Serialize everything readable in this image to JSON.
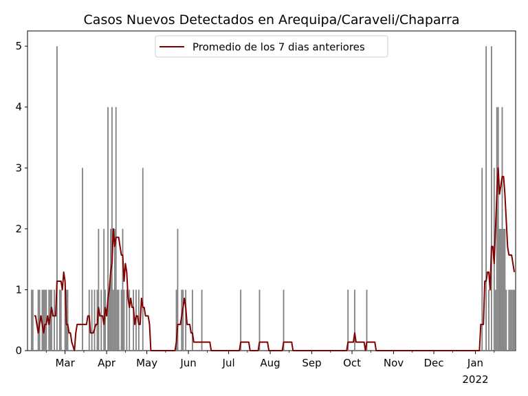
{
  "chart_data": {
    "type": "bar",
    "title": "Casos Nuevos Detectados en Arequipa/Caraveli/Chaparra",
    "xlabel": "",
    "ylabel": "",
    "x_range": [
      "2021-02-01",
      "2022-01-31"
    ],
    "ylim": [
      0,
      5.25
    ],
    "yticks": [
      0,
      1,
      2,
      3,
      4,
      5
    ],
    "xticks": [
      {
        "date": "2021-03-01",
        "label": "Mar"
      },
      {
        "date": "2021-04-01",
        "label": "Apr"
      },
      {
        "date": "2021-05-01",
        "label": "May"
      },
      {
        "date": "2021-06-01",
        "label": "Jun"
      },
      {
        "date": "2021-07-01",
        "label": "Jul"
      },
      {
        "date": "2021-08-01",
        "label": "Aug"
      },
      {
        "date": "2021-09-01",
        "label": "Sep"
      },
      {
        "date": "2021-10-01",
        "label": "Oct"
      },
      {
        "date": "2021-11-01",
        "label": "Nov"
      },
      {
        "date": "2021-12-01",
        "label": "Dec"
      },
      {
        "date": "2022-01-01",
        "label": "Jan",
        "sublabel": "2022"
      }
    ],
    "grid": false,
    "legend": {
      "position": "top-center",
      "entries": [
        "Promedio de los 7 dias anteriores"
      ]
    },
    "colors": {
      "bars": "#808080",
      "line": "#800000"
    },
    "bars": [
      [
        "2021-02-04",
        1
      ],
      [
        "2021-02-05",
        1
      ],
      [
        "2021-02-09",
        1
      ],
      [
        "2021-02-10",
        1
      ],
      [
        "2021-02-12",
        1
      ],
      [
        "2021-02-13",
        1
      ],
      [
        "2021-02-14",
        1
      ],
      [
        "2021-02-15",
        1
      ],
      [
        "2021-02-17",
        1
      ],
      [
        "2021-02-18",
        1
      ],
      [
        "2021-02-19",
        1
      ],
      [
        "2021-02-21",
        1
      ],
      [
        "2021-02-23",
        5
      ],
      [
        "2021-02-25",
        1
      ],
      [
        "2021-02-26",
        1
      ],
      [
        "2021-03-01",
        1
      ],
      [
        "2021-03-02",
        1
      ],
      [
        "2021-03-03",
        1
      ],
      [
        "2021-03-14",
        3
      ],
      [
        "2021-03-19",
        1
      ],
      [
        "2021-03-21",
        1
      ],
      [
        "2021-03-23",
        1
      ],
      [
        "2021-03-25",
        1
      ],
      [
        "2021-03-26",
        2
      ],
      [
        "2021-03-28",
        1
      ],
      [
        "2021-03-30",
        2
      ],
      [
        "2021-03-31",
        1
      ],
      [
        "2021-04-02",
        4
      ],
      [
        "2021-04-03",
        1
      ],
      [
        "2021-04-04",
        2
      ],
      [
        "2021-04-05",
        4
      ],
      [
        "2021-04-06",
        1
      ],
      [
        "2021-04-07",
        2
      ],
      [
        "2021-04-08",
        4
      ],
      [
        "2021-04-09",
        1
      ],
      [
        "2021-04-10",
        1
      ],
      [
        "2021-04-12",
        1
      ],
      [
        "2021-04-13",
        2
      ],
      [
        "2021-04-14",
        1
      ],
      [
        "2021-04-16",
        1
      ],
      [
        "2021-04-18",
        1
      ],
      [
        "2021-04-21",
        1
      ],
      [
        "2021-04-23",
        1
      ],
      [
        "2021-04-25",
        1
      ],
      [
        "2021-04-28",
        3
      ],
      [
        "2021-05-23",
        1
      ],
      [
        "2021-05-24",
        2
      ],
      [
        "2021-05-27",
        1
      ],
      [
        "2021-05-28",
        1
      ],
      [
        "2021-05-30",
        1
      ],
      [
        "2021-06-04",
        1
      ],
      [
        "2021-06-11",
        1
      ],
      [
        "2021-07-10",
        1
      ],
      [
        "2021-07-24",
        1
      ],
      [
        "2021-08-11",
        1
      ],
      [
        "2021-09-28",
        1
      ],
      [
        "2021-10-03",
        1
      ],
      [
        "2021-10-12",
        1
      ],
      [
        "2022-01-06",
        3
      ],
      [
        "2022-01-09",
        5
      ],
      [
        "2022-01-11",
        1
      ],
      [
        "2022-01-13",
        5
      ],
      [
        "2022-01-15",
        3
      ],
      [
        "2022-01-16",
        1
      ],
      [
        "2022-01-17",
        4
      ],
      [
        "2022-01-18",
        4
      ],
      [
        "2022-01-19",
        2
      ],
      [
        "2022-01-20",
        2
      ],
      [
        "2022-01-21",
        4
      ],
      [
        "2022-01-22",
        2
      ],
      [
        "2022-01-23",
        2
      ],
      [
        "2022-01-24",
        1
      ],
      [
        "2022-01-26",
        1
      ],
      [
        "2022-01-27",
        1
      ],
      [
        "2022-01-28",
        1
      ],
      [
        "2022-01-29",
        1
      ],
      [
        "2022-01-30",
        1
      ]
    ],
    "series": [
      {
        "name": "Promedio de los 7 dias anteriores",
        "points": [
          [
            "2021-02-06",
            0.57
          ],
          [
            "2021-02-07",
            0.57
          ],
          [
            "2021-02-08",
            0.43
          ],
          [
            "2021-02-09",
            0.29
          ],
          [
            "2021-02-10",
            0.43
          ],
          [
            "2021-02-11",
            0.57
          ],
          [
            "2021-02-12",
            0.43
          ],
          [
            "2021-02-13",
            0.29
          ],
          [
            "2021-02-14",
            0.43
          ],
          [
            "2021-02-15",
            0.43
          ],
          [
            "2021-02-16",
            0.57
          ],
          [
            "2021-02-17",
            0.43
          ],
          [
            "2021-02-18",
            0.57
          ],
          [
            "2021-02-19",
            0.71
          ],
          [
            "2021-02-20",
            0.57
          ],
          [
            "2021-02-21",
            0.57
          ],
          [
            "2021-02-22",
            0.57
          ],
          [
            "2021-02-23",
            1.14
          ],
          [
            "2021-02-24",
            1.14
          ],
          [
            "2021-02-25",
            1.14
          ],
          [
            "2021-02-26",
            1.14
          ],
          [
            "2021-02-27",
            1.0
          ],
          [
            "2021-02-28",
            1.29
          ],
          [
            "2021-03-01",
            1.14
          ],
          [
            "2021-03-02",
            0.43
          ],
          [
            "2021-03-03",
            0.43
          ],
          [
            "2021-03-04",
            0.29
          ],
          [
            "2021-03-05",
            0.29
          ],
          [
            "2021-03-06",
            0.14
          ],
          [
            "2021-03-08",
            0.0
          ],
          [
            "2021-03-09",
            0.29
          ],
          [
            "2021-03-10",
            0.43
          ],
          [
            "2021-03-13",
            0.43
          ],
          [
            "2021-03-14",
            0.43
          ],
          [
            "2021-03-16",
            0.43
          ],
          [
            "2021-03-17",
            0.43
          ],
          [
            "2021-03-18",
            0.57
          ],
          [
            "2021-03-19",
            0.57
          ],
          [
            "2021-03-20",
            0.29
          ],
          [
            "2021-03-22",
            0.29
          ],
          [
            "2021-03-24",
            0.43
          ],
          [
            "2021-03-25",
            0.43
          ],
          [
            "2021-03-26",
            0.71
          ],
          [
            "2021-03-27",
            0.57
          ],
          [
            "2021-03-28",
            0.57
          ],
          [
            "2021-03-29",
            0.57
          ],
          [
            "2021-03-30",
            0.43
          ],
          [
            "2021-03-31",
            0.71
          ],
          [
            "2021-04-01",
            0.57
          ],
          [
            "2021-04-02",
            0.86
          ],
          [
            "2021-04-03",
            1.0
          ],
          [
            "2021-04-04",
            1.29
          ],
          [
            "2021-04-05",
            1.43
          ],
          [
            "2021-04-06",
            2.0
          ],
          [
            "2021-04-07",
            1.71
          ],
          [
            "2021-04-08",
            1.86
          ],
          [
            "2021-04-10",
            1.86
          ],
          [
            "2021-04-11",
            1.71
          ],
          [
            "2021-04-12",
            1.57
          ],
          [
            "2021-04-13",
            1.57
          ],
          [
            "2021-04-14",
            1.14
          ],
          [
            "2021-04-15",
            1.43
          ],
          [
            "2021-04-16",
            1.29
          ],
          [
            "2021-04-17",
            0.86
          ],
          [
            "2021-04-18",
            0.71
          ],
          [
            "2021-04-19",
            0.86
          ],
          [
            "2021-04-20",
            0.71
          ],
          [
            "2021-04-21",
            0.71
          ],
          [
            "2021-04-22",
            0.43
          ],
          [
            "2021-04-23",
            0.57
          ],
          [
            "2021-04-24",
            0.57
          ],
          [
            "2021-04-25",
            0.43
          ],
          [
            "2021-04-26",
            0.43
          ],
          [
            "2021-04-27",
            0.86
          ],
          [
            "2021-04-28",
            0.71
          ],
          [
            "2021-04-29",
            0.71
          ],
          [
            "2021-04-30",
            0.57
          ],
          [
            "2021-05-01",
            0.57
          ],
          [
            "2021-05-02",
            0.57
          ],
          [
            "2021-05-03",
            0.43
          ],
          [
            "2021-05-04",
            0.0
          ],
          [
            "2021-05-22",
            0.0
          ],
          [
            "2021-05-23",
            0.14
          ],
          [
            "2021-05-24",
            0.43
          ],
          [
            "2021-05-25",
            0.43
          ],
          [
            "2021-05-26",
            0.43
          ],
          [
            "2021-05-27",
            0.57
          ],
          [
            "2021-05-28",
            0.71
          ],
          [
            "2021-05-29",
            0.86
          ],
          [
            "2021-05-30",
            0.71
          ],
          [
            "2021-05-31",
            0.43
          ],
          [
            "2021-06-02",
            0.43
          ],
          [
            "2021-06-03",
            0.29
          ],
          [
            "2021-06-04",
            0.29
          ],
          [
            "2021-06-05",
            0.14
          ],
          [
            "2021-06-17",
            0.14
          ],
          [
            "2021-06-18",
            0.0
          ],
          [
            "2021-07-09",
            0.0
          ],
          [
            "2021-07-10",
            0.14
          ],
          [
            "2021-07-16",
            0.14
          ],
          [
            "2021-07-17",
            0.0
          ],
          [
            "2021-07-23",
            0.0
          ],
          [
            "2021-07-24",
            0.14
          ],
          [
            "2021-07-30",
            0.14
          ],
          [
            "2021-07-31",
            0.0
          ],
          [
            "2021-08-10",
            0.0
          ],
          [
            "2021-08-11",
            0.14
          ],
          [
            "2021-08-17",
            0.14
          ],
          [
            "2021-08-18",
            0.0
          ],
          [
            "2021-09-27",
            0.0
          ],
          [
            "2021-09-28",
            0.14
          ],
          [
            "2021-10-02",
            0.14
          ],
          [
            "2021-10-03",
            0.29
          ],
          [
            "2021-10-04",
            0.14
          ],
          [
            "2021-10-10",
            0.14
          ],
          [
            "2021-10-11",
            0.0
          ],
          [
            "2021-10-12",
            0.14
          ],
          [
            "2021-10-18",
            0.14
          ],
          [
            "2021-10-19",
            0.0
          ],
          [
            "2022-01-04",
            0.0
          ],
          [
            "2022-01-05",
            0.43
          ],
          [
            "2022-01-07",
            0.43
          ],
          [
            "2022-01-08",
            1.14
          ],
          [
            "2022-01-09",
            1.14
          ],
          [
            "2022-01-10",
            1.29
          ],
          [
            "2022-01-11",
            1.29
          ],
          [
            "2022-01-12",
            1.0
          ],
          [
            "2022-01-13",
            1.71
          ],
          [
            "2022-01-14",
            1.71
          ],
          [
            "2022-01-15",
            1.43
          ],
          [
            "2022-01-16",
            2.0
          ],
          [
            "2022-01-17",
            2.57
          ],
          [
            "2022-01-18",
            3.0
          ],
          [
            "2022-01-19",
            2.57
          ],
          [
            "2022-01-20",
            2.71
          ],
          [
            "2022-01-21",
            2.86
          ],
          [
            "2022-01-22",
            2.86
          ],
          [
            "2022-01-23",
            2.57
          ],
          [
            "2022-01-24",
            2.14
          ],
          [
            "2022-01-25",
            1.71
          ],
          [
            "2022-01-26",
            1.57
          ],
          [
            "2022-01-27",
            1.57
          ],
          [
            "2022-01-28",
            1.57
          ],
          [
            "2022-01-30",
            1.29
          ]
        ]
      }
    ]
  }
}
